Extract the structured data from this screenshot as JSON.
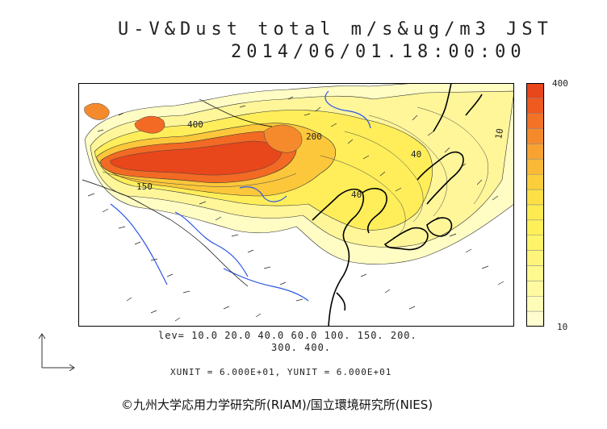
{
  "header": {
    "line1": "U-V&Dust total m/s&ug/m3 JST",
    "line2": "2014/06/01.18:00:00"
  },
  "colorbar": {
    "max_label": "400",
    "min_label": "10",
    "colors": [
      "#e8461b",
      "#ee5a1f",
      "#f27226",
      "#f58a2c",
      "#f8a232",
      "#fab938",
      "#fcce3c",
      "#fde046",
      "#feeb52",
      "#fff05a",
      "#fff36a",
      "#fff57c",
      "#fff88e",
      "#fffaa2",
      "#fffcb8",
      "#fffdd0"
    ]
  },
  "levels": {
    "line1": "lev= 10.0 20.0 40.0 60.0 100. 150. 200.",
    "line2": "300. 400."
  },
  "units": "XUNIT = 6.000E+01, YUNIT = 6.000E+01",
  "map_labels": {
    "a": "150",
    "b": "400",
    "c": "200",
    "d": "40",
    "e": "40",
    "f": "10"
  },
  "copyright": "©九州大学応用力学研究所(RIAM)/国立環境研究所(NIES)"
}
